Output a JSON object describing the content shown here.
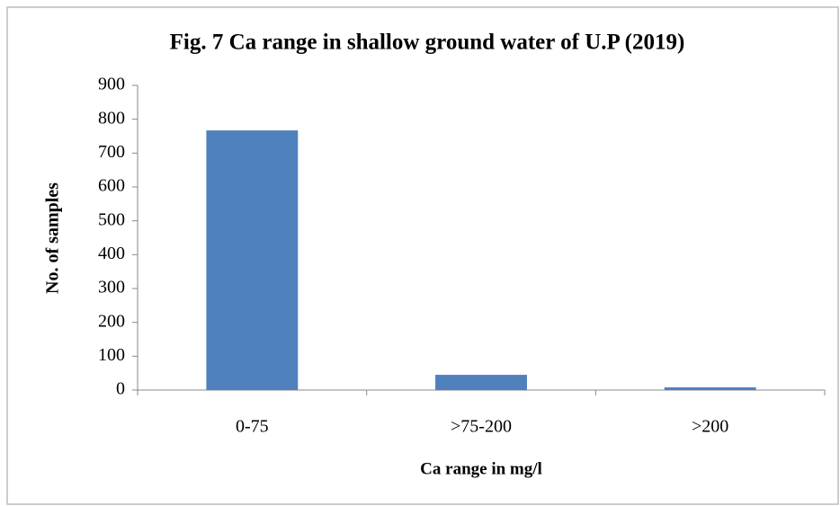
{
  "chart_data": {
    "type": "bar",
    "title": "Fig. 7 Ca range in shallow ground water of U.P (2019)",
    "x_label": "Ca range in mg/l",
    "y_label": "No. of samples",
    "categories": [
      "0-75",
      ">75-200",
      ">200"
    ],
    "values": [
      767,
      45,
      8
    ],
    "color": "#4f81bd",
    "ylim": [
      0,
      900
    ],
    "yticks": [
      0,
      100,
      200,
      300,
      400,
      500,
      600,
      700,
      800,
      900
    ],
    "grid": false
  }
}
